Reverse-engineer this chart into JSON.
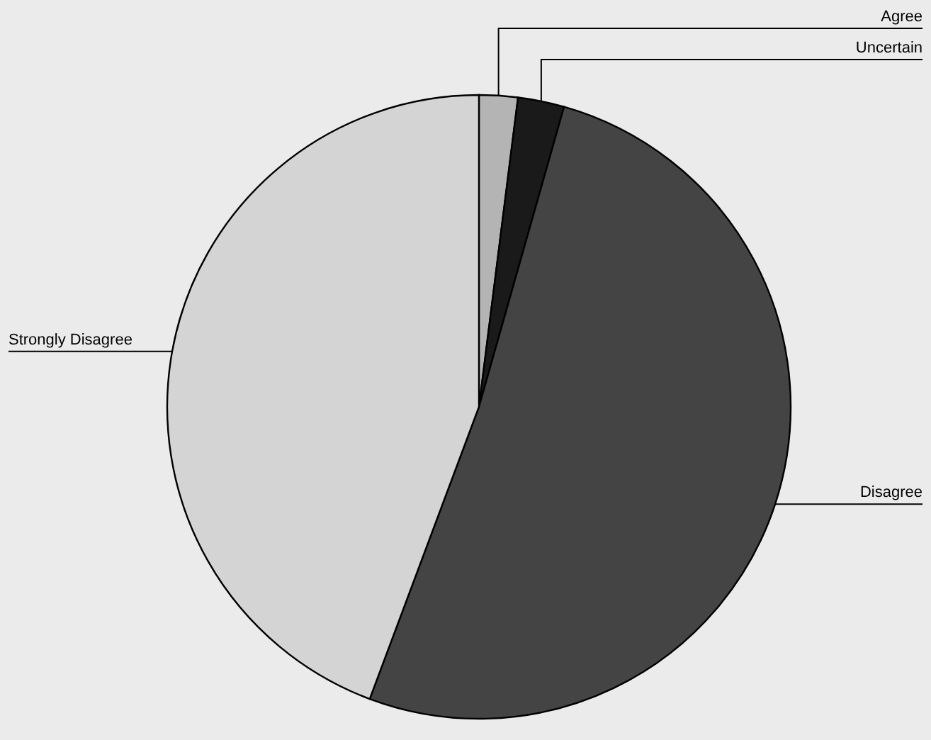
{
  "chart_data": {
    "type": "pie",
    "categories": [
      "Agree",
      "Uncertain",
      "Disagree",
      "Strongly Disagree"
    ],
    "values": [
      2.0,
      2.4,
      51.3,
      44.3
    ],
    "colors": [
      "#b4b4b4",
      "#1a1a1a",
      "#444444",
      "#d4d4d4"
    ]
  }
}
